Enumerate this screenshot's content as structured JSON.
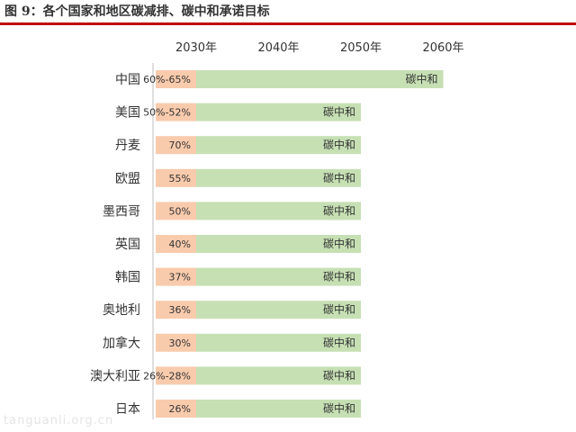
{
  "figure": {
    "title": "图 9：各个国家和地区碳减排、碳中和承诺目标",
    "watermark": "tanguanli.org.cn"
  },
  "chart_data": {
    "type": "bar",
    "orientation": "horizontal",
    "stacked": true,
    "title": "图 9：各个国家和地区碳减排、碳中和承诺目标",
    "x_ticks": [
      "2030年",
      "2040年",
      "2050年",
      "2060年"
    ],
    "x_range": [
      2030,
      2060
    ],
    "categories": [
      "中国",
      "美国",
      "丹麦",
      "欧盟",
      "墨西哥",
      "英国",
      "韩国",
      "奥地利",
      "加拿大",
      "澳大利亚",
      "日本"
    ],
    "series": [
      {
        "color": "#f8cbad",
        "start": [
          2025,
          2025,
          2025,
          2025,
          2025,
          2025,
          2025,
          2025,
          2025,
          2025,
          2025
        ],
        "end": [
          2030,
          2030,
          2030,
          2030,
          2030,
          2030,
          2030,
          2030,
          2030,
          2030,
          2030
        ],
        "labels": [
          "60%-65%",
          "50%-52%",
          "70%",
          "55%",
          "50%",
          "40%",
          "37%",
          "36%",
          "30%",
          "26%-28%",
          "26%"
        ]
      },
      {
        "color": "#c6e0b4",
        "start": [
          2030,
          2030,
          2030,
          2030,
          2030,
          2030,
          2030,
          2030,
          2030,
          2030,
          2030
        ],
        "end": [
          2060,
          2050,
          2050,
          2050,
          2050,
          2050,
          2050,
          2050,
          2050,
          2050,
          2050
        ],
        "labels": [
          "碳中和",
          "碳中和",
          "碳中和",
          "碳中和",
          "碳中和",
          "碳中和",
          "碳中和",
          "碳中和",
          "碳中和",
          "碳中和",
          "碳中和"
        ]
      }
    ],
    "grid": false,
    "legend": "none"
  }
}
